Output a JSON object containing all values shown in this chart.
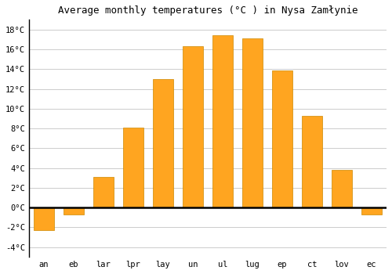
{
  "title": "Average monthly temperatures (°C ) in Nysa Zamłynie",
  "month_labels": [
    "an",
    "eb",
    "lar",
    "lpr",
    "lay",
    "un",
    "ul",
    "lug",
    "ep",
    "ct",
    "lov",
    "ec"
  ],
  "temperatures": [
    -2.3,
    -0.7,
    3.1,
    8.1,
    13.0,
    16.3,
    17.4,
    17.1,
    13.9,
    9.3,
    3.8,
    -0.7
  ],
  "bar_color": "#FFA520",
  "bar_edge_color": "#CC8800",
  "background_color": "#FFFFFF",
  "grid_color": "#CCCCCC",
  "ylim": [
    -5.0,
    19.0
  ],
  "yticks": [
    -4,
    -2,
    0,
    2,
    4,
    6,
    8,
    10,
    12,
    14,
    16,
    18
  ],
  "zero_line_color": "#000000",
  "title_fontsize": 9,
  "tick_fontsize": 7.5,
  "font_family": "monospace"
}
